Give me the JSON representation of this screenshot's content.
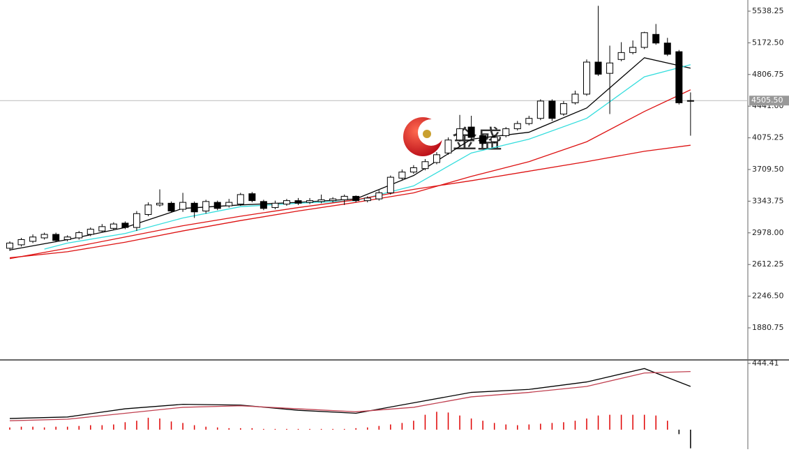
{
  "watermark": "金盛",
  "chart_data": [
    {
      "type": "candlestick",
      "open": [
        2800,
        2840,
        2880,
        2920,
        2960,
        2900,
        2920,
        2960,
        3000,
        3030,
        3090,
        3040,
        3190,
        3300,
        3320,
        3250,
        3320,
        3230,
        3330,
        3290,
        3310,
        3430,
        3340,
        3270,
        3310,
        3350,
        3330,
        3340,
        3350,
        3360,
        3400,
        3350,
        3370,
        3440,
        3610,
        3680,
        3720,
        3790,
        3900,
        4050,
        4200,
        4100,
        4030,
        4100,
        4180,
        4240,
        4300,
        4500,
        4350,
        4480,
        4580,
        4950,
        4820,
        4980,
        5060,
        5120,
        5270,
        5170,
        5070,
        4500
      ],
      "high": [
        2880,
        2920,
        2960,
        2980,
        2980,
        2950,
        3000,
        3040,
        3080,
        3100,
        3110,
        3230,
        3330,
        3480,
        3340,
        3440,
        3340,
        3360,
        3350,
        3370,
        3440,
        3450,
        3360,
        3350,
        3370,
        3380,
        3380,
        3420,
        3390,
        3420,
        3410,
        3400,
        3470,
        3640,
        3710,
        3760,
        3830,
        3910,
        4080,
        4340,
        4330,
        4120,
        4110,
        4200,
        4270,
        4330,
        4520,
        4520,
        4500,
        4620,
        4980,
        5600,
        5140,
        5180,
        5200,
        5300,
        5390,
        5230,
        5090,
        4600
      ],
      "low": [
        2770,
        2820,
        2860,
        2900,
        2870,
        2880,
        2900,
        2940,
        2980,
        3010,
        3020,
        3000,
        3170,
        3280,
        3210,
        3220,
        3150,
        3200,
        3240,
        3270,
        3290,
        3330,
        3240,
        3250,
        3290,
        3300,
        3310,
        3320,
        3330,
        3300,
        3330,
        3330,
        3350,
        3420,
        3590,
        3660,
        3700,
        3770,
        3880,
        4030,
        4060,
        3990,
        4010,
        4080,
        4160,
        4220,
        4280,
        4270,
        4330,
        4460,
        4560,
        4790,
        4350,
        4960,
        5040,
        5100,
        5150,
        5020,
        4460,
        4100
      ],
      "close": [
        2860,
        2900,
        2930,
        2960,
        2890,
        2930,
        2980,
        3020,
        3050,
        3080,
        3040,
        3200,
        3300,
        3320,
        3230,
        3330,
        3220,
        3340,
        3260,
        3330,
        3420,
        3350,
        3260,
        3320,
        3350,
        3320,
        3350,
        3360,
        3370,
        3400,
        3350,
        3380,
        3440,
        3620,
        3680,
        3730,
        3800,
        3880,
        4050,
        4180,
        4080,
        4010,
        4080,
        4180,
        4240,
        4300,
        4500,
        4300,
        4470,
        4580,
        4950,
        4810,
        4940,
        5060,
        5120,
        5290,
        5170,
        5040,
        4480,
        4505.5
      ],
      "up_color": "#ffffff",
      "down_color": "#000000",
      "lines": [
        {
          "color": "#000000",
          "x": [
            0,
            5,
            10,
            15,
            20,
            25,
            30,
            35,
            40,
            45,
            50,
            55,
            59
          ],
          "values": [
            2780,
            2900,
            3040,
            3260,
            3300,
            3330,
            3370,
            3640,
            4060,
            4140,
            4420,
            5000,
            4880
          ]
        },
        {
          "color": "#33dddd",
          "x": [
            3,
            5,
            10,
            15,
            20,
            25,
            30,
            35,
            40,
            45,
            50,
            55,
            59
          ],
          "values": [
            2790,
            2860,
            2970,
            3150,
            3280,
            3320,
            3350,
            3520,
            3900,
            4060,
            4300,
            4780,
            4920
          ]
        },
        {
          "color": "#dd1111",
          "x": [
            0,
            5,
            10,
            15,
            20,
            25,
            30,
            35,
            40,
            45,
            50,
            55,
            59
          ],
          "values": [
            2690,
            2760,
            2870,
            3000,
            3120,
            3230,
            3330,
            3440,
            3630,
            3800,
            4030,
            4380,
            4630
          ]
        },
        {
          "color": "#dd1111",
          "x": [
            0,
            5,
            10,
            15,
            20,
            25,
            30,
            35,
            40,
            45,
            50,
            55,
            59
          ],
          "values": [
            2680,
            2800,
            2930,
            3060,
            3170,
            3270,
            3360,
            3480,
            3580,
            3690,
            3800,
            3920,
            3990
          ]
        }
      ],
      "ylim": [
        1518.3,
        5667.1
      ],
      "yticks": [
        5538.25,
        {
          "value": 5172.5,
          "label": "5172.50"
        },
        4806.75,
        {
          "value": 4441,
          "label": "4441.00"
        },
        4075.25,
        {
          "value": 3709.5,
          "label": "3709.50"
        },
        3343.75,
        {
          "value": 2978,
          "label": "2978.00"
        },
        2612.25,
        {
          "value": 2246.5,
          "label": "2246.50"
        },
        1880.75
      ],
      "last_price": {
        "value": 4505.5,
        "label": "4505.50"
      }
    },
    {
      "type": "macd",
      "ylim": [
        -131,
        463
      ],
      "yticks": [
        444.41
      ],
      "lines": [
        {
          "color": "#000000",
          "x": [
            0,
            5,
            10,
            15,
            20,
            25,
            30,
            35,
            40,
            45,
            50,
            55,
            59
          ],
          "values": [
            75,
            85,
            140,
            170,
            165,
            130,
            110,
            180,
            250,
            270,
            320,
            410,
            290
          ]
        },
        {
          "color": "#c04050",
          "x": [
            0,
            5,
            10,
            15,
            20,
            25,
            30,
            35,
            40,
            45,
            50,
            55,
            59
          ],
          "values": [
            60,
            70,
            110,
            150,
            160,
            140,
            120,
            150,
            220,
            250,
            290,
            380,
            390
          ]
        }
      ],
      "histogram": [
        15,
        20,
        20,
        15,
        20,
        20,
        25,
        30,
        30,
        35,
        50,
        60,
        80,
        75,
        55,
        45,
        30,
        20,
        15,
        10,
        10,
        10,
        5,
        5,
        5,
        5,
        5,
        5,
        5,
        5,
        10,
        15,
        25,
        35,
        45,
        60,
        100,
        120,
        115,
        95,
        75,
        60,
        45,
        35,
        30,
        35,
        40,
        45,
        50,
        60,
        75,
        95,
        100,
        100,
        100,
        100,
        95,
        60,
        -30,
        -125
      ],
      "up_color": "#e00000",
      "down_color": "#000000"
    }
  ]
}
